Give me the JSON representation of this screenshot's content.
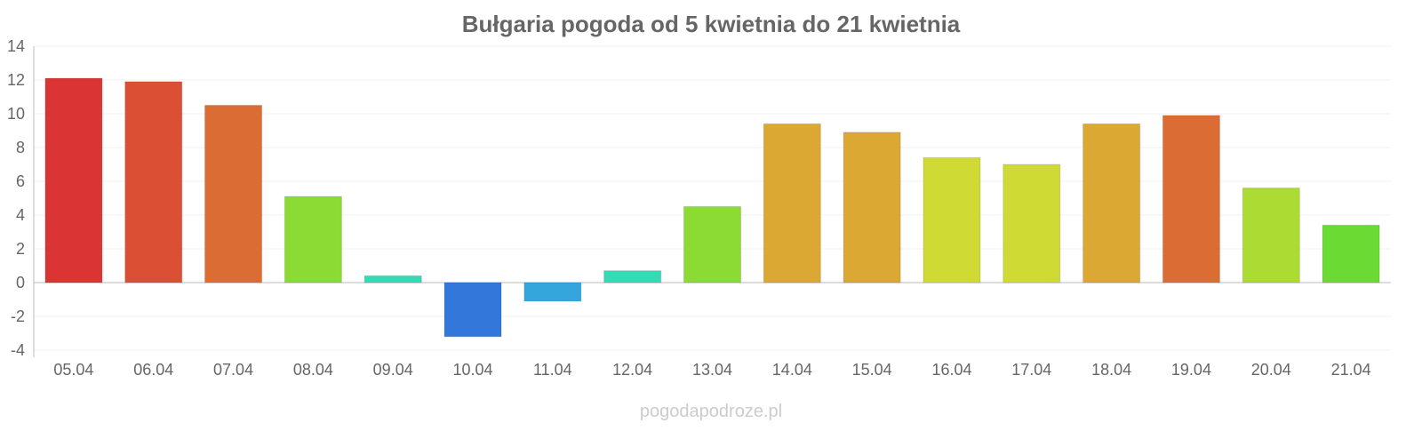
{
  "chart_data": {
    "type": "bar",
    "title": "Bułgaria pogoda od 5 kwietnia do 21 kwietnia",
    "xlabel": "",
    "ylabel": "",
    "ylim": [
      -4,
      14
    ],
    "yticks": [
      "14",
      "12",
      "10",
      "8",
      "6",
      "4",
      "2",
      "0",
      "-2",
      "-4"
    ],
    "grid": true,
    "categories": [
      "05.04",
      "06.04",
      "07.04",
      "08.04",
      "09.04",
      "10.04",
      "11.04",
      "12.04",
      "13.04",
      "14.04",
      "15.04",
      "16.04",
      "17.04",
      "18.04",
      "19.04",
      "20.04",
      "21.04"
    ],
    "values": [
      12.1,
      11.9,
      10.5,
      5.1,
      0.4,
      -3.2,
      -1.1,
      0.7,
      4.5,
      9.4,
      8.9,
      7.4,
      7.0,
      9.4,
      9.9,
      5.6,
      3.4
    ],
    "colors": [
      "#db3434",
      "#db5034",
      "#db6d34",
      "#8bdb34",
      "#34dbb5",
      "#3477db",
      "#34a6db",
      "#34dbb5",
      "#8bdb34",
      "#dba834",
      "#dba834",
      "#cfdb34",
      "#cfdb34",
      "#dba834",
      "#db6d34",
      "#acdb34",
      "#6bdb34"
    ]
  },
  "watermark": "pogodapodroze.pl"
}
